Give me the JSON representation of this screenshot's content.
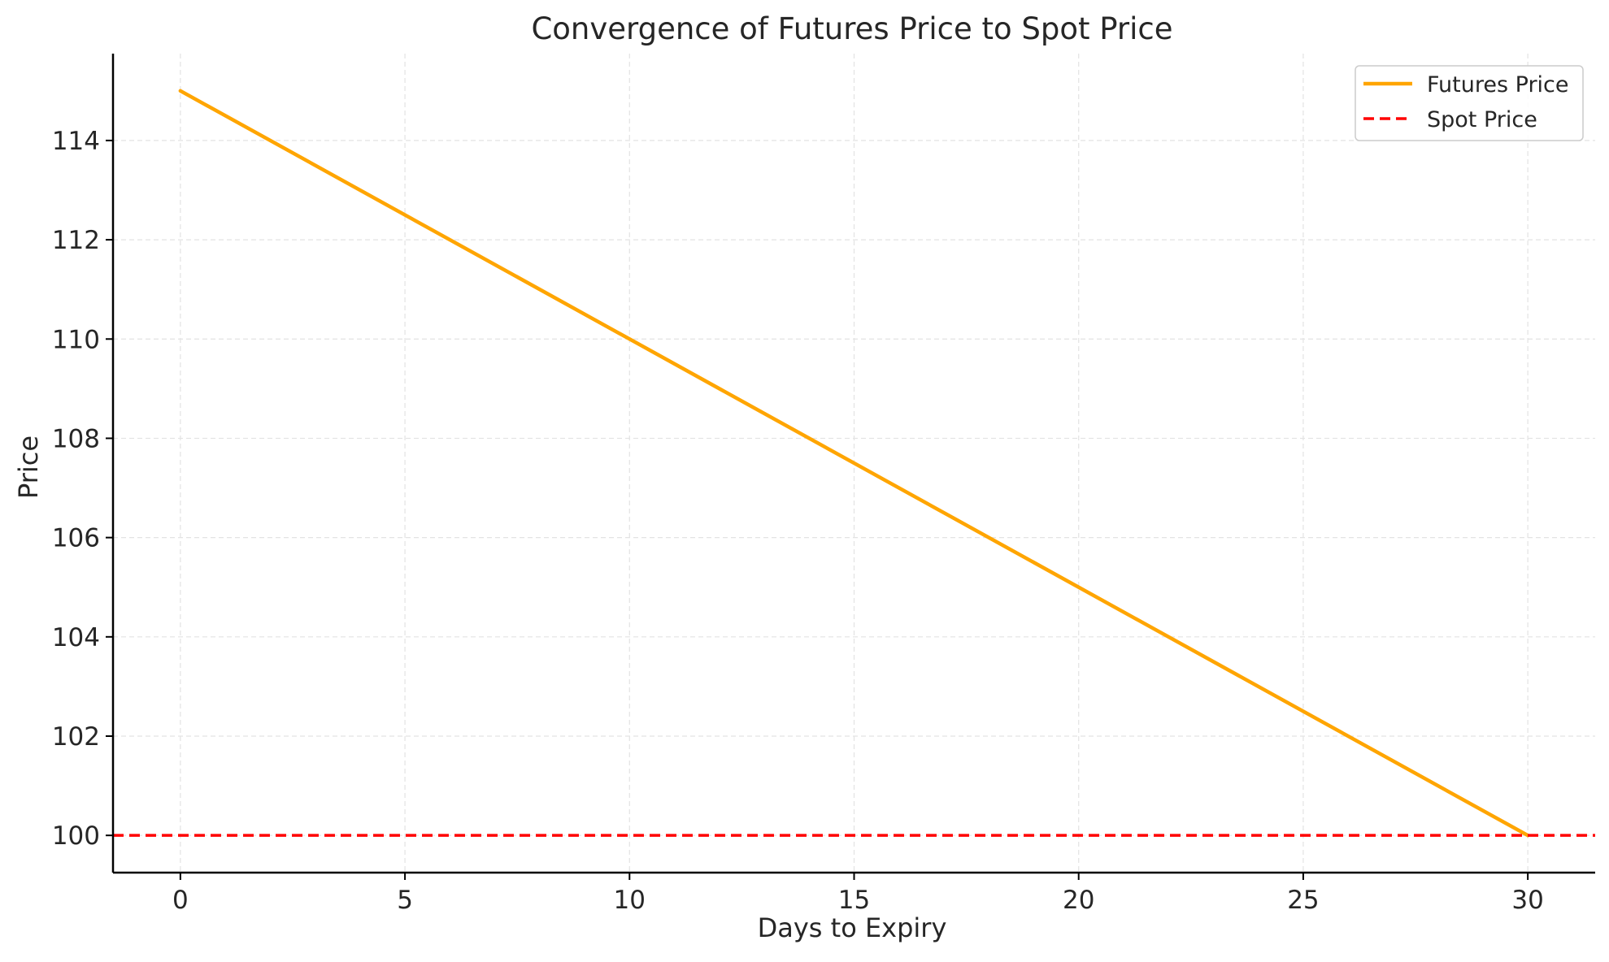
{
  "chart_data": {
    "type": "line",
    "title": "Convergence of Futures Price to Spot Price",
    "xlabel": "Days to Expiry",
    "ylabel": "Price",
    "xlim": [
      -1.5,
      31.5
    ],
    "ylim": [
      99.25,
      115.75
    ],
    "xticks": [
      0,
      5,
      10,
      15,
      20,
      25,
      30
    ],
    "yticks": [
      100,
      102,
      104,
      106,
      108,
      110,
      112,
      114
    ],
    "grid": true,
    "legend_position": "top-right",
    "series": [
      {
        "name": "Futures Price",
        "color": "#ffa500",
        "style": "solid",
        "x": [
          0,
          30
        ],
        "y": [
          115,
          100
        ]
      },
      {
        "name": "Spot Price",
        "color": "#ff0000",
        "style": "dashed",
        "horizontal": true,
        "y": 100
      }
    ]
  }
}
